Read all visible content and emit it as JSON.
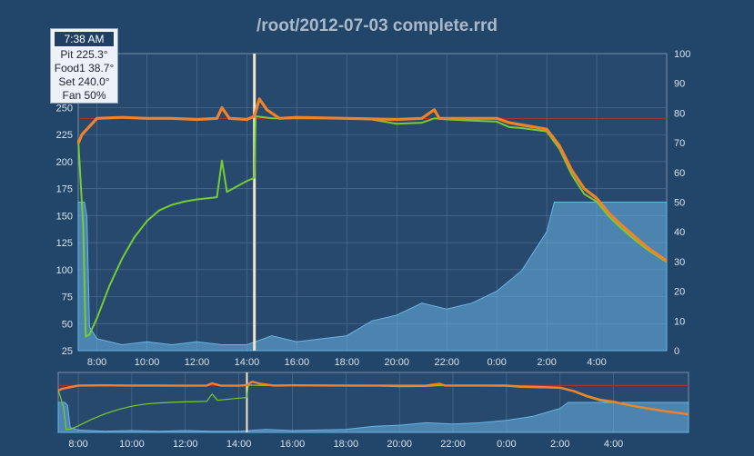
{
  "title": "/root/2012-07-03 complete.rrd",
  "tooltip": {
    "time": "7:38 AM",
    "pit": "Pit 225.3°",
    "food1": "Food1 38.7°",
    "set": "Set 240.0°",
    "fan": "Fan 50%"
  },
  "colors": {
    "background": "#22466a",
    "plot_bg": "#26496d",
    "pit": "#f0822c",
    "food1": "#77cc33",
    "fan": "#6ab4e6",
    "setpoint": "#b03030",
    "marker": "#f0e6c8"
  },
  "chart_data": {
    "type": "line",
    "title": "/root/2012-07-03 complete.rrd",
    "x_ticks": [
      "8:00",
      "10:00",
      "12:00",
      "14:00",
      "16:00",
      "18:00",
      "20:00",
      "22:00",
      "0:00",
      "2:00",
      "4:00"
    ],
    "x_tick_hours": [
      8,
      10,
      12,
      14,
      16,
      18,
      20,
      22,
      24,
      26,
      28
    ],
    "xlim": [
      7.25,
      30.8
    ],
    "y_left": {
      "ylim": [
        25,
        300
      ],
      "ticks": [
        25,
        50,
        75,
        100,
        125,
        150,
        175,
        200,
        225,
        250
      ]
    },
    "y_right": {
      "ylim": [
        0,
        100
      ],
      "ticks": [
        0,
        10,
        20,
        30,
        40,
        50,
        60,
        70,
        80,
        90,
        100
      ]
    },
    "marker_hour": 14.3,
    "setpoint": 240,
    "series": [
      {
        "name": "Pit",
        "axis": "left",
        "points": [
          [
            7.25,
            217
          ],
          [
            7.4,
            225
          ],
          [
            7.6,
            230
          ],
          [
            8,
            240
          ],
          [
            9,
            241
          ],
          [
            10,
            240
          ],
          [
            11,
            240
          ],
          [
            12,
            239
          ],
          [
            12.8,
            240
          ],
          [
            13,
            250
          ],
          [
            13.3,
            240
          ],
          [
            14,
            239
          ],
          [
            14.3,
            242
          ],
          [
            14.5,
            258
          ],
          [
            14.8,
            248
          ],
          [
            15.3,
            240
          ],
          [
            16,
            241
          ],
          [
            18,
            240
          ],
          [
            20,
            239
          ],
          [
            21,
            240
          ],
          [
            21.5,
            248
          ],
          [
            21.7,
            240
          ],
          [
            22,
            240
          ],
          [
            24,
            240
          ],
          [
            24.5,
            236
          ],
          [
            25,
            234
          ],
          [
            26,
            230
          ],
          [
            26.5,
            215
          ],
          [
            27,
            192
          ],
          [
            27.5,
            175
          ],
          [
            28,
            166
          ],
          [
            28.5,
            152
          ],
          [
            29,
            141
          ],
          [
            29.5,
            131
          ],
          [
            30,
            121
          ],
          [
            30.8,
            108
          ]
        ]
      },
      {
        "name": "Food1",
        "axis": "left",
        "points": [
          [
            7.25,
            220
          ],
          [
            7.45,
            140
          ],
          [
            7.55,
            38
          ],
          [
            7.7,
            40
          ],
          [
            8,
            55
          ],
          [
            8.5,
            85
          ],
          [
            9,
            110
          ],
          [
            9.5,
            130
          ],
          [
            10,
            145
          ],
          [
            10.5,
            155
          ],
          [
            11,
            160
          ],
          [
            11.5,
            163
          ],
          [
            12,
            165
          ],
          [
            12.8,
            167
          ],
          [
            13,
            201
          ],
          [
            13.2,
            172
          ],
          [
            14,
            182
          ],
          [
            14.3,
            185
          ],
          [
            14.35,
            242
          ],
          [
            15,
            240
          ],
          [
            16,
            240
          ],
          [
            18,
            240
          ],
          [
            19,
            239
          ],
          [
            20,
            235
          ],
          [
            21,
            236
          ],
          [
            21.5,
            240
          ],
          [
            22,
            239
          ],
          [
            24,
            237
          ],
          [
            24.5,
            232
          ],
          [
            25,
            231
          ],
          [
            26,
            228
          ],
          [
            26.5,
            212
          ],
          [
            27,
            188
          ],
          [
            27.5,
            170
          ],
          [
            28,
            163
          ],
          [
            28.5,
            149
          ],
          [
            29,
            138
          ],
          [
            29.5,
            128
          ],
          [
            30,
            119
          ],
          [
            30.8,
            107
          ]
        ]
      },
      {
        "name": "Fan",
        "axis": "right",
        "points": [
          [
            7.25,
            50
          ],
          [
            7.5,
            50
          ],
          [
            7.6,
            45
          ],
          [
            7.7,
            8
          ],
          [
            8,
            4
          ],
          [
            9,
            2
          ],
          [
            10,
            3
          ],
          [
            11,
            2
          ],
          [
            12,
            3
          ],
          [
            13,
            2
          ],
          [
            14,
            2
          ],
          [
            15,
            5
          ],
          [
            16,
            3
          ],
          [
            17,
            4
          ],
          [
            18,
            5
          ],
          [
            19,
            10
          ],
          [
            20,
            12
          ],
          [
            21,
            16
          ],
          [
            22,
            14
          ],
          [
            23,
            16
          ],
          [
            24,
            20
          ],
          [
            25,
            27
          ],
          [
            26,
            40
          ],
          [
            26.3,
            50
          ],
          [
            30.8,
            50
          ]
        ]
      }
    ]
  }
}
